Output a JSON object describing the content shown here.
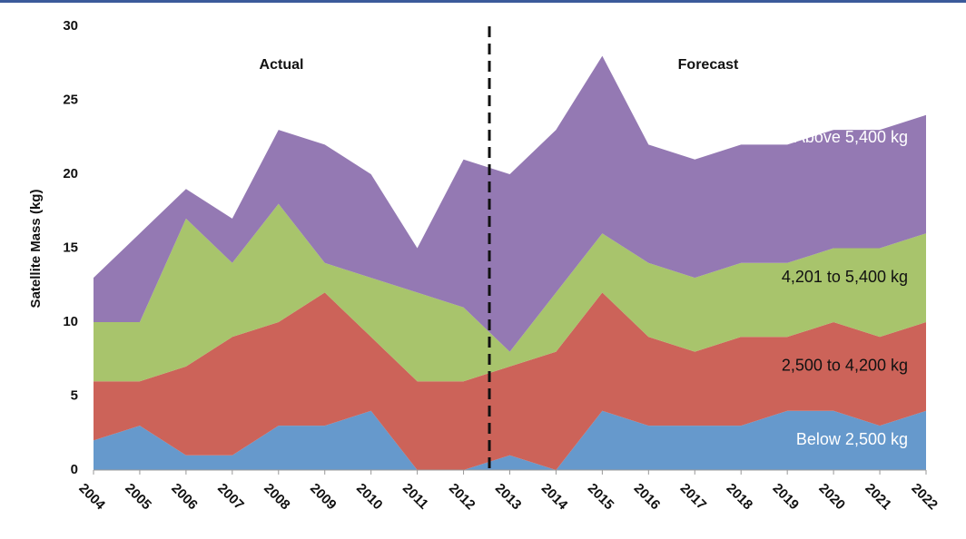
{
  "chart_data": {
    "type": "stacked_area",
    "y_label": "Satellite Mass (kg)",
    "annotations": [
      "Actual",
      "Forecast"
    ],
    "categories": [
      "2004",
      "2005",
      "2006",
      "2007",
      "2008",
      "2009",
      "2010",
      "2011",
      "2012",
      "2013",
      "2014",
      "2015",
      "2016",
      "2017",
      "2018",
      "2019",
      "2020",
      "2021",
      "2022"
    ],
    "series": [
      {
        "name": "Below 2,500 kg",
        "color": "#6699cc",
        "label_color": "#ffffff",
        "values": [
          2,
          3,
          1,
          1,
          3,
          3,
          4,
          0,
          0,
          1,
          0,
          4,
          3,
          3,
          3,
          4,
          4,
          3,
          4
        ]
      },
      {
        "name": "2,500 to 4,200 kg",
        "color": "#cc6359",
        "label_color": "#111111",
        "values": [
          4,
          3,
          6,
          8,
          7,
          9,
          5,
          6,
          6,
          6,
          8,
          8,
          6,
          5,
          6,
          5,
          6,
          6,
          6
        ]
      },
      {
        "name": "4,201 to 5,400 kg",
        "color": "#a8c46c",
        "label_color": "#111111",
        "values": [
          4,
          4,
          10,
          5,
          8,
          2,
          4,
          6,
          5,
          1,
          4,
          4,
          5,
          5,
          5,
          5,
          5,
          6,
          6
        ]
      },
      {
        "name": "Above 5,400 kg",
        "color": "#9479b3",
        "label_color": "#ffffff",
        "values": [
          3,
          6,
          2,
          3,
          5,
          8,
          7,
          3,
          10,
          12,
          11,
          12,
          8,
          8,
          8,
          8,
          8,
          8,
          8
        ]
      }
    ],
    "ylim": [
      0,
      30
    ],
    "yticks": [
      0,
      5,
      10,
      15,
      20,
      25,
      30
    ],
    "grid": false
  }
}
